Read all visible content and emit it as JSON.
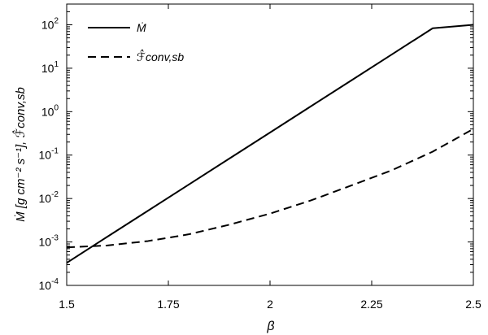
{
  "chart_data": {
    "type": "line",
    "title": "",
    "xlabel": "β",
    "ylabel": "Ṁ [g cm⁻² s⁻¹], ℱ̂conv,sb",
    "xlim": [
      1.5,
      2.5
    ],
    "ylim": [
      0.0001,
      300
    ],
    "yscale": "log",
    "grid": false,
    "legend_position": "top-left",
    "x_ticks": [
      {
        "value": 1.5,
        "label": "1.5"
      },
      {
        "value": 1.75,
        "label": "1.75"
      },
      {
        "value": 2,
        "label": "2"
      },
      {
        "value": 2.25,
        "label": "2.25"
      },
      {
        "value": 2.5,
        "label": "2.5"
      }
    ],
    "y_ticks": [
      {
        "value": 0.0001,
        "base": "10",
        "exp": "-4"
      },
      {
        "value": 0.001,
        "base": "10",
        "exp": "-3"
      },
      {
        "value": 0.01,
        "base": "10",
        "exp": "-2"
      },
      {
        "value": 0.1,
        "base": "10",
        "exp": "-1"
      },
      {
        "value": 1,
        "base": "10",
        "exp": "0"
      },
      {
        "value": 10,
        "base": "10",
        "exp": "1"
      },
      {
        "value": 100,
        "base": "10",
        "exp": "2"
      }
    ],
    "series": [
      {
        "name": "Ṁ",
        "style": "solid",
        "color": "#000000",
        "x": [
          1.5,
          1.6,
          1.7,
          1.8,
          1.9,
          2.0,
          2.1,
          2.2,
          2.3,
          2.4,
          2.5
        ],
        "y": [
          0.00033,
          0.00132,
          0.00525,
          0.0209,
          0.0832,
          0.331,
          1.32,
          5.25,
          20.9,
          83.2,
          100
        ]
      },
      {
        "name": "ℱ̂conv,sb",
        "style": "dashed",
        "color": "#000000",
        "x": [
          1.5,
          1.6,
          1.7,
          1.75,
          1.8,
          1.9,
          2.0,
          2.1,
          2.2,
          2.25,
          2.3,
          2.4,
          2.5
        ],
        "y": [
          0.00075,
          0.00083,
          0.00105,
          0.00125,
          0.0015,
          0.0025,
          0.0045,
          0.009,
          0.02,
          0.03,
          0.045,
          0.12,
          0.4
        ]
      }
    ]
  }
}
